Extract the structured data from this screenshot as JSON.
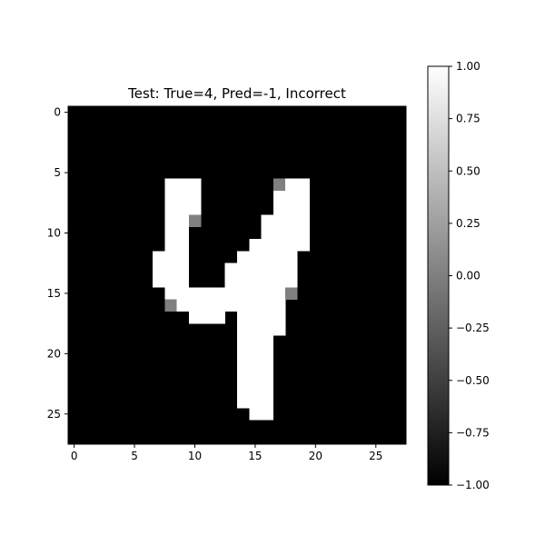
{
  "chart_data": {
    "type": "heatmap",
    "title": "Test: True=4, Pred=-1, Incorrect",
    "xlabel": "",
    "ylabel": "",
    "xlim": [
      -0.5,
      27.5
    ],
    "ylim": [
      27.5,
      -0.5
    ],
    "x_ticks": [
      0,
      5,
      10,
      15,
      20,
      25
    ],
    "y_ticks": [
      0,
      5,
      10,
      15,
      20,
      25
    ],
    "x_tick_labels": [
      "0",
      "5",
      "10",
      "15",
      "20",
      "25"
    ],
    "y_tick_labels": [
      "0",
      "5",
      "10",
      "15",
      "20",
      "25"
    ],
    "grid": false,
    "colormap": "gray",
    "vmin": -1.0,
    "vmax": 1.0,
    "colorbar": {
      "ticks": [
        -1.0,
        -0.75,
        -0.5,
        -0.25,
        0.0,
        0.25,
        0.5,
        0.75,
        1.0
      ],
      "tick_labels": [
        "−1.00",
        "−0.75",
        "−0.50",
        "−0.25",
        "0.00",
        "0.25",
        "0.50",
        "0.75",
        "1.00"
      ]
    },
    "background_value": -1.0,
    "cells": [
      {
        "x": 8,
        "y": 6,
        "v": 1
      },
      {
        "x": 9,
        "y": 6,
        "v": 1
      },
      {
        "x": 10,
        "y": 6,
        "v": 1
      },
      {
        "x": 17,
        "y": 6,
        "v": 0
      },
      {
        "x": 18,
        "y": 6,
        "v": 1
      },
      {
        "x": 19,
        "y": 6,
        "v": 1
      },
      {
        "x": 8,
        "y": 7,
        "v": 1
      },
      {
        "x": 9,
        "y": 7,
        "v": 1
      },
      {
        "x": 10,
        "y": 7,
        "v": 1
      },
      {
        "x": 17,
        "y": 7,
        "v": 1
      },
      {
        "x": 18,
        "y": 7,
        "v": 1
      },
      {
        "x": 19,
        "y": 7,
        "v": 1
      },
      {
        "x": 8,
        "y": 8,
        "v": 1
      },
      {
        "x": 9,
        "y": 8,
        "v": 1
      },
      {
        "x": 10,
        "y": 8,
        "v": 1
      },
      {
        "x": 17,
        "y": 8,
        "v": 1
      },
      {
        "x": 18,
        "y": 8,
        "v": 1
      },
      {
        "x": 19,
        "y": 8,
        "v": 1
      },
      {
        "x": 8,
        "y": 9,
        "v": 1
      },
      {
        "x": 9,
        "y": 9,
        "v": 1
      },
      {
        "x": 10,
        "y": 9,
        "v": 0
      },
      {
        "x": 16,
        "y": 9,
        "v": 1
      },
      {
        "x": 17,
        "y": 9,
        "v": 1
      },
      {
        "x": 18,
        "y": 9,
        "v": 1
      },
      {
        "x": 19,
        "y": 9,
        "v": 1
      },
      {
        "x": 8,
        "y": 10,
        "v": 1
      },
      {
        "x": 9,
        "y": 10,
        "v": 1
      },
      {
        "x": 16,
        "y": 10,
        "v": 1
      },
      {
        "x": 17,
        "y": 10,
        "v": 1
      },
      {
        "x": 18,
        "y": 10,
        "v": 1
      },
      {
        "x": 19,
        "y": 10,
        "v": 1
      },
      {
        "x": 8,
        "y": 11,
        "v": 1
      },
      {
        "x": 9,
        "y": 11,
        "v": 1
      },
      {
        "x": 15,
        "y": 11,
        "v": 1
      },
      {
        "x": 16,
        "y": 11,
        "v": 1
      },
      {
        "x": 17,
        "y": 11,
        "v": 1
      },
      {
        "x": 18,
        "y": 11,
        "v": 1
      },
      {
        "x": 19,
        "y": 11,
        "v": 1
      },
      {
        "x": 7,
        "y": 12,
        "v": 1
      },
      {
        "x": 8,
        "y": 12,
        "v": 1
      },
      {
        "x": 9,
        "y": 12,
        "v": 1
      },
      {
        "x": 14,
        "y": 12,
        "v": 1
      },
      {
        "x": 15,
        "y": 12,
        "v": 1
      },
      {
        "x": 16,
        "y": 12,
        "v": 1
      },
      {
        "x": 17,
        "y": 12,
        "v": 1
      },
      {
        "x": 18,
        "y": 12,
        "v": 1
      },
      {
        "x": 7,
        "y": 13,
        "v": 1
      },
      {
        "x": 8,
        "y": 13,
        "v": 1
      },
      {
        "x": 9,
        "y": 13,
        "v": 1
      },
      {
        "x": 13,
        "y": 13,
        "v": 1
      },
      {
        "x": 14,
        "y": 13,
        "v": 1
      },
      {
        "x": 15,
        "y": 13,
        "v": 1
      },
      {
        "x": 16,
        "y": 13,
        "v": 1
      },
      {
        "x": 17,
        "y": 13,
        "v": 1
      },
      {
        "x": 18,
        "y": 13,
        "v": 1
      },
      {
        "x": 7,
        "y": 14,
        "v": 1
      },
      {
        "x": 8,
        "y": 14,
        "v": 1
      },
      {
        "x": 9,
        "y": 14,
        "v": 1
      },
      {
        "x": 13,
        "y": 14,
        "v": 1
      },
      {
        "x": 14,
        "y": 14,
        "v": 1
      },
      {
        "x": 15,
        "y": 14,
        "v": 1
      },
      {
        "x": 16,
        "y": 14,
        "v": 1
      },
      {
        "x": 17,
        "y": 14,
        "v": 1
      },
      {
        "x": 18,
        "y": 14,
        "v": 1
      },
      {
        "x": 8,
        "y": 15,
        "v": 1
      },
      {
        "x": 9,
        "y": 15,
        "v": 1
      },
      {
        "x": 10,
        "y": 15,
        "v": 1
      },
      {
        "x": 11,
        "y": 15,
        "v": 1
      },
      {
        "x": 12,
        "y": 15,
        "v": 1
      },
      {
        "x": 13,
        "y": 15,
        "v": 1
      },
      {
        "x": 14,
        "y": 15,
        "v": 1
      },
      {
        "x": 15,
        "y": 15,
        "v": 1
      },
      {
        "x": 16,
        "y": 15,
        "v": 1
      },
      {
        "x": 17,
        "y": 15,
        "v": 1
      },
      {
        "x": 18,
        "y": 15,
        "v": 0
      },
      {
        "x": 8,
        "y": 16,
        "v": 0
      },
      {
        "x": 9,
        "y": 16,
        "v": 1
      },
      {
        "x": 10,
        "y": 16,
        "v": 1
      },
      {
        "x": 11,
        "y": 16,
        "v": 1
      },
      {
        "x": 12,
        "y": 16,
        "v": 1
      },
      {
        "x": 13,
        "y": 16,
        "v": 1
      },
      {
        "x": 14,
        "y": 16,
        "v": 1
      },
      {
        "x": 15,
        "y": 16,
        "v": 1
      },
      {
        "x": 16,
        "y": 16,
        "v": 1
      },
      {
        "x": 17,
        "y": 16,
        "v": 1
      },
      {
        "x": 10,
        "y": 17,
        "v": 1
      },
      {
        "x": 11,
        "y": 17,
        "v": 1
      },
      {
        "x": 12,
        "y": 17,
        "v": 1
      },
      {
        "x": 14,
        "y": 17,
        "v": 1
      },
      {
        "x": 15,
        "y": 17,
        "v": 1
      },
      {
        "x": 16,
        "y": 17,
        "v": 1
      },
      {
        "x": 17,
        "y": 17,
        "v": 1
      },
      {
        "x": 14,
        "y": 18,
        "v": 1
      },
      {
        "x": 15,
        "y": 18,
        "v": 1
      },
      {
        "x": 16,
        "y": 18,
        "v": 1
      },
      {
        "x": 17,
        "y": 18,
        "v": 1
      },
      {
        "x": 14,
        "y": 19,
        "v": 1
      },
      {
        "x": 15,
        "y": 19,
        "v": 1
      },
      {
        "x": 16,
        "y": 19,
        "v": 1
      },
      {
        "x": 14,
        "y": 20,
        "v": 1
      },
      {
        "x": 15,
        "y": 20,
        "v": 1
      },
      {
        "x": 16,
        "y": 20,
        "v": 1
      },
      {
        "x": 14,
        "y": 21,
        "v": 1
      },
      {
        "x": 15,
        "y": 21,
        "v": 1
      },
      {
        "x": 16,
        "y": 21,
        "v": 1
      },
      {
        "x": 14,
        "y": 22,
        "v": 1
      },
      {
        "x": 15,
        "y": 22,
        "v": 1
      },
      {
        "x": 16,
        "y": 22,
        "v": 1
      },
      {
        "x": 14,
        "y": 23,
        "v": 1
      },
      {
        "x": 15,
        "y": 23,
        "v": 1
      },
      {
        "x": 16,
        "y": 23,
        "v": 1
      },
      {
        "x": 14,
        "y": 24,
        "v": 1
      },
      {
        "x": 15,
        "y": 24,
        "v": 1
      },
      {
        "x": 16,
        "y": 24,
        "v": 1
      },
      {
        "x": 15,
        "y": 25,
        "v": 1
      },
      {
        "x": 16,
        "y": 25,
        "v": 1
      }
    ]
  }
}
